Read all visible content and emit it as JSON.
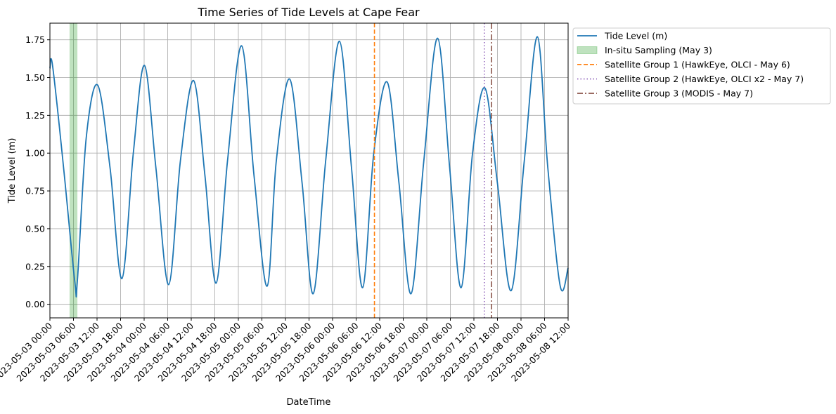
{
  "chart_data": {
    "type": "line",
    "title": "Time Series of Tide Levels at Cape Fear",
    "xlabel": "DateTime",
    "ylabel": "Tide Level (m)",
    "xlim": [
      "2023-05-03 00:00",
      "2023-05-08 12:00"
    ],
    "ylim": [
      -0.09,
      1.86
    ],
    "grid": true,
    "legend_position": "outside-top-right",
    "x_ticks": [
      "2023-05-03 00:00",
      "2023-05-03 06:00",
      "2023-05-03 12:00",
      "2023-05-03 18:00",
      "2023-05-04 00:00",
      "2023-05-04 06:00",
      "2023-05-04 12:00",
      "2023-05-04 18:00",
      "2023-05-05 00:00",
      "2023-05-05 06:00",
      "2023-05-05 12:00",
      "2023-05-05 18:00",
      "2023-05-06 00:00",
      "2023-05-06 06:00",
      "2023-05-06 12:00",
      "2023-05-06 18:00",
      "2023-05-07 00:00",
      "2023-05-07 06:00",
      "2023-05-07 12:00",
      "2023-05-07 18:00",
      "2023-05-08 00:00",
      "2023-05-08 06:00",
      "2023-05-08 12:00"
    ],
    "x_tick_labels": [
      "2023-05-03 00:00",
      "2023-05-03 06:00",
      "2023-05-03 12:00",
      "2023-05-03 18:00",
      "2023-05-04 00:00",
      "2023-05-04 06:00",
      "2023-05-04 12:00",
      "2023-05-04 18:00",
      "2023-05-05 00:00",
      "2023-05-05 06:00",
      "2023-05-05 12:00",
      "2023-05-05 18:00",
      "2023-05-06 00:00",
      "2023-05-06 06:00",
      "2023-05-06 12:00",
      "2023-05-06 18:00",
      "2023-05-07 00:00",
      "2023-05-07 06:00",
      "2023-05-07 12:00",
      "2023-05-07 18:00",
      "2023-05-08 00:00",
      "2023-05-08 06:00",
      "2023-05-08 12:00"
    ],
    "y_ticks": [
      0.0,
      0.25,
      0.5,
      0.75,
      1.0,
      1.25,
      1.5,
      1.75
    ],
    "y_tick_labels": [
      "0.00",
      "0.25",
      "0.50",
      "0.75",
      "1.00",
      "1.25",
      "1.50",
      "1.75"
    ],
    "series": [
      {
        "name": "Tide Level (m)",
        "color": "#1f77b4",
        "style": "solid",
        "x": [
          "2023-05-03 00:00",
          "2023-05-03 00:40",
          "2023-05-03 03:30",
          "2023-05-03 06:20",
          "2023-05-03 07:00",
          "2023-05-03 09:15",
          "2023-05-03 12:10",
          "2023-05-03 15:20",
          "2023-05-03 18:20",
          "2023-05-03 21:15",
          "2023-05-04 00:05",
          "2023-05-04 03:00",
          "2023-05-04 06:15",
          "2023-05-04 09:15",
          "2023-05-04 12:35",
          "2023-05-04 15:30",
          "2023-05-04 18:20",
          "2023-05-04 21:15",
          "2023-05-05 00:50",
          "2023-05-05 04:00",
          "2023-05-05 07:20",
          "2023-05-05 09:40",
          "2023-05-05 13:05",
          "2023-05-05 16:15",
          "2023-05-05 19:05",
          "2023-05-05 22:15",
          "2023-05-06 01:45",
          "2023-05-06 04:50",
          "2023-05-06 07:40",
          "2023-05-06 10:30",
          "2023-05-06 13:55",
          "2023-05-06 16:55",
          "2023-05-06 20:00",
          "2023-05-06 23:15",
          "2023-05-07 02:45",
          "2023-05-07 05:50",
          "2023-05-07 08:45",
          "2023-05-07 11:40",
          "2023-05-07 14:50",
          "2023-05-07 18:00",
          "2023-05-07 21:30",
          "2023-05-08 00:50",
          "2023-05-08 04:10",
          "2023-05-08 06:50",
          "2023-05-08 10:00",
          "2023-05-08 12:00"
        ],
        "values": [
          1.56,
          1.58,
          0.9,
          0.15,
          0.16,
          1.1,
          1.45,
          0.9,
          0.17,
          1.0,
          1.58,
          0.9,
          0.13,
          0.95,
          1.48,
          0.85,
          0.14,
          0.95,
          1.71,
          0.85,
          0.12,
          0.95,
          1.49,
          0.8,
          0.07,
          0.95,
          1.74,
          0.9,
          0.11,
          1.0,
          1.47,
          0.8,
          0.07,
          0.95,
          1.76,
          0.9,
          0.11,
          1.0,
          1.43,
          0.8,
          0.09,
          0.95,
          1.77,
          0.9,
          0.12,
          0.24
        ]
      }
    ],
    "shaded_regions": [
      {
        "name": "In-situ Sampling (May 3)",
        "color": "#2ca02c",
        "opacity": 0.3,
        "x_start": "2023-05-03 05:00",
        "x_end": "2023-05-03 07:00"
      }
    ],
    "vertical_lines": [
      {
        "name": "Satellite Group 1 (HawkEye, OLCI - May 6)",
        "color": "#ff7f0e",
        "style": "dashed",
        "x": "2023-05-06 10:40"
      },
      {
        "name": "Satellite Group 2 (HawkEye, OLCI x2 - May 7)",
        "color": "#9467bd",
        "style": "dotted",
        "x": "2023-05-07 14:40"
      },
      {
        "name": "Satellite Group 3 (MODIS - May 7)",
        "color": "#8c564b",
        "style": "dashdot",
        "x": "2023-05-07 16:30"
      }
    ],
    "legend": [
      "Tide Level (m)",
      "In-situ Sampling (May 3)",
      "Satellite Group 1 (HawkEye, OLCI - May 6)",
      "Satellite Group 2 (HawkEye, OLCI x2 - May 7)",
      "Satellite Group 3 (MODIS - May 7)"
    ]
  }
}
